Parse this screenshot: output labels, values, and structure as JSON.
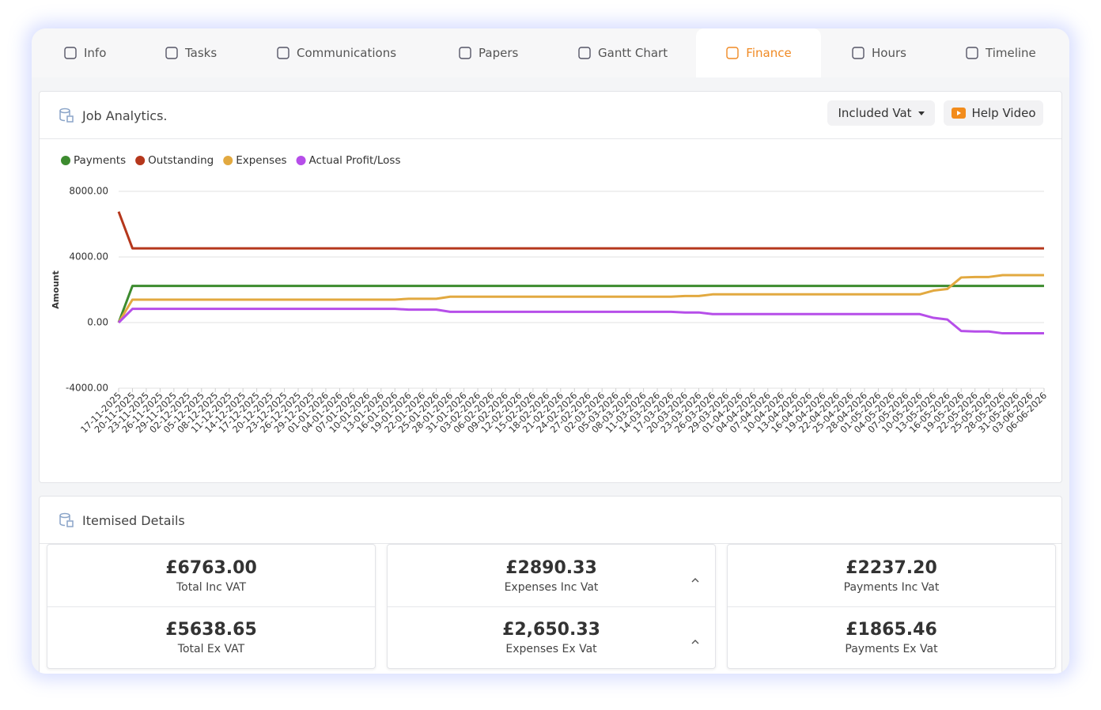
{
  "tabs": [
    "Info",
    "Tasks",
    "Communications",
    "Papers",
    "Gantt Chart",
    "Finance",
    "Hours",
    "Timeline"
  ],
  "active_tab": 5,
  "analytics": {
    "title": "Job Analytics.",
    "vat_dropdown": "Included Vat",
    "help_button": "Help Video"
  },
  "chart_data": {
    "type": "line",
    "ylabel": "Amount",
    "categories": [
      "17-11-2025",
      "20-11-2025",
      "23-11-2025",
      "26-11-2025",
      "29-11-2025",
      "02-12-2025",
      "05-12-2025",
      "08-12-2025",
      "11-12-2025",
      "14-12-2025",
      "17-12-2025",
      "20-12-2025",
      "23-12-2025",
      "26-12-2025",
      "29-12-2025",
      "01-01-2026",
      "04-01-2026",
      "07-01-2026",
      "10-01-2026",
      "13-01-2026",
      "16-01-2026",
      "19-01-2026",
      "22-01-2026",
      "25-01-2026",
      "28-01-2026",
      "31-01-2026",
      "03-02-2026",
      "06-02-2026",
      "09-02-2026",
      "12-02-2026",
      "15-02-2026",
      "18-02-2026",
      "21-02-2026",
      "24-02-2026",
      "27-02-2026",
      "02-03-2026",
      "05-03-2026",
      "08-03-2026",
      "11-03-2026",
      "14-03-2026",
      "17-03-2026",
      "20-03-2026",
      "23-03-2026",
      "26-03-2026",
      "29-03-2026",
      "01-04-2026",
      "04-04-2026",
      "07-04-2026",
      "10-04-2026",
      "13-04-2026",
      "16-04-2026",
      "19-04-2026",
      "22-04-2026",
      "25-04-2026",
      "28-04-2026",
      "01-05-2026",
      "04-05-2026",
      "07-05-2026",
      "10-05-2026",
      "13-05-2026",
      "16-05-2026",
      "19-05-2026",
      "22-05-2026",
      "25-05-2026",
      "28-05-2026",
      "31-05-2026",
      "03-06-2026",
      "06-06-2026"
    ],
    "series": [
      {
        "name": "Payments",
        "color": "#3d8b2f",
        "values": [
          0,
          2237.2,
          2237.2,
          2237.2,
          2237.2,
          2237.2,
          2237.2,
          2237.2,
          2237.2,
          2237.2,
          2237.2,
          2237.2,
          2237.2,
          2237.2,
          2237.2,
          2237.2,
          2237.2,
          2237.2,
          2237.2,
          2237.2,
          2237.2,
          2237.2,
          2237.2,
          2237.2,
          2237.2,
          2237.2,
          2237.2,
          2237.2,
          2237.2,
          2237.2,
          2237.2,
          2237.2,
          2237.2,
          2237.2,
          2237.2,
          2237.2,
          2237.2,
          2237.2,
          2237.2,
          2237.2,
          2237.2,
          2237.2,
          2237.2,
          2237.2,
          2237.2,
          2237.2,
          2237.2,
          2237.2,
          2237.2,
          2237.2,
          2237.2,
          2237.2,
          2237.2,
          2237.2,
          2237.2,
          2237.2,
          2237.2,
          2237.2,
          2237.2,
          2237.2,
          2237.2,
          2237.2,
          2237.2,
          2237.2,
          2237.2,
          2237.2,
          2237.2,
          2237.2
        ]
      },
      {
        "name": "Outstanding",
        "color": "#b5371c",
        "values": [
          6763,
          4526,
          4526,
          4526,
          4526,
          4526,
          4526,
          4526,
          4526,
          4526,
          4526,
          4526,
          4526,
          4526,
          4526,
          4526,
          4526,
          4526,
          4526,
          4526,
          4526,
          4526,
          4526,
          4526,
          4526,
          4526,
          4526,
          4526,
          4526,
          4526,
          4526,
          4526,
          4526,
          4526,
          4526,
          4526,
          4526,
          4526,
          4526,
          4526,
          4526,
          4526,
          4526,
          4526,
          4526,
          4526,
          4526,
          4526,
          4526,
          4526,
          4526,
          4526,
          4526,
          4526,
          4526,
          4526,
          4526,
          4526,
          4526,
          4526,
          4526,
          4526,
          4526,
          4526,
          4526,
          4526,
          4526,
          4526
        ]
      },
      {
        "name": "Expenses",
        "color": "#e2a940",
        "values": [
          0,
          1400,
          1400,
          1400,
          1400,
          1400,
          1400,
          1400,
          1400,
          1400,
          1400,
          1400,
          1400,
          1400,
          1400,
          1400,
          1400,
          1400,
          1400,
          1400,
          1400,
          1450,
          1450,
          1450,
          1580,
          1580,
          1580,
          1580,
          1580,
          1580,
          1580,
          1580,
          1580,
          1580,
          1580,
          1580,
          1580,
          1580,
          1580,
          1580,
          1580,
          1620,
          1620,
          1720,
          1720,
          1720,
          1720,
          1720,
          1720,
          1720,
          1720,
          1720,
          1720,
          1720,
          1720,
          1720,
          1720,
          1720,
          1720,
          1950,
          2050,
          2750,
          2780,
          2780,
          2890.33,
          2890.33,
          2890.33,
          2890.33
        ]
      },
      {
        "name": "Actual Profit/Loss",
        "color": "#b64ee9",
        "values": [
          0,
          837.2,
          837.2,
          837.2,
          837.2,
          837.2,
          837.2,
          837.2,
          837.2,
          837.2,
          837.2,
          837.2,
          837.2,
          837.2,
          837.2,
          837.2,
          837.2,
          837.2,
          837.2,
          837.2,
          837.2,
          787.2,
          787.2,
          787.2,
          657.2,
          657.2,
          657.2,
          657.2,
          657.2,
          657.2,
          657.2,
          657.2,
          657.2,
          657.2,
          657.2,
          657.2,
          657.2,
          657.2,
          657.2,
          657.2,
          657.2,
          617.2,
          617.2,
          517.2,
          517.2,
          517.2,
          517.2,
          517.2,
          517.2,
          517.2,
          517.2,
          517.2,
          517.2,
          517.2,
          517.2,
          517.2,
          517.2,
          517.2,
          517.2,
          287.2,
          187.2,
          -512.8,
          -542.8,
          -542.8,
          -653.13,
          -653.13,
          -653.13,
          -653.13
        ]
      }
    ],
    "ylim": [
      -4000,
      8000
    ],
    "yticks": [
      {
        "value": -4000,
        "label": "-4000.00"
      },
      {
        "value": 0,
        "label": "0.00"
      },
      {
        "value": 4000,
        "label": "4000.00"
      },
      {
        "value": 8000,
        "label": "8000.00"
      }
    ],
    "grid": true,
    "legend": "top-left"
  },
  "details": {
    "title": "Itemised Details",
    "items": [
      {
        "value": "£6763.00",
        "label": "Total Inc VAT"
      },
      {
        "value": "£5638.65",
        "label": "Total Ex VAT"
      },
      {
        "value": "£2890.33",
        "label": "Expenses Inc Vat"
      },
      {
        "value": "£2,650.33",
        "label": "Expenses Ex Vat"
      },
      {
        "value": "£2237.20",
        "label": "Payments Inc Vat"
      },
      {
        "value": "£1865.46",
        "label": "Payments Ex Vat"
      }
    ]
  }
}
